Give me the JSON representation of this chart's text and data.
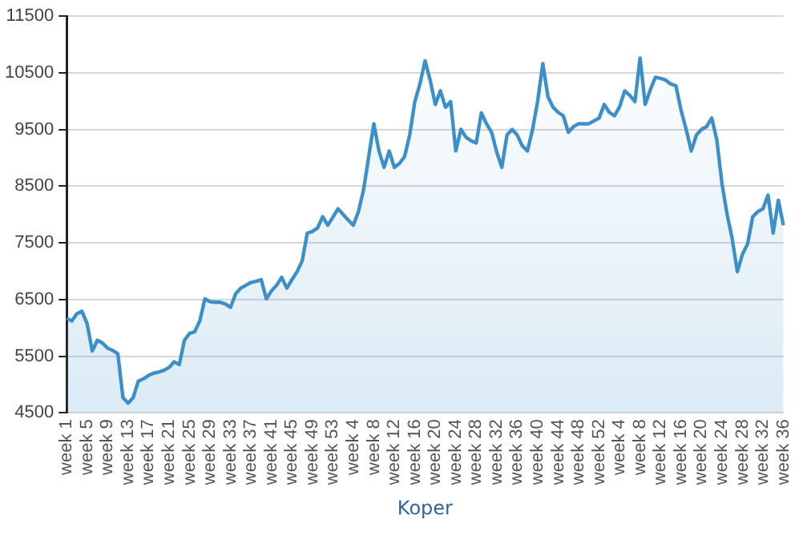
{
  "chart_data": {
    "type": "area",
    "xlabel": "Koper",
    "categories": [
      "week 1",
      null,
      null,
      null,
      "week 5",
      null,
      null,
      null,
      "week 9",
      null,
      null,
      null,
      "week 13",
      null,
      null,
      null,
      "week 17",
      null,
      null,
      null,
      "week 21",
      null,
      null,
      null,
      "week 25",
      null,
      null,
      null,
      "week 29",
      null,
      null,
      null,
      "week 33",
      null,
      null,
      null,
      "week 37",
      null,
      null,
      null,
      "week 41",
      null,
      null,
      null,
      "week 45",
      null,
      null,
      null,
      "week 49",
      null,
      null,
      null,
      "week 53",
      null,
      null,
      null,
      "week 4",
      null,
      null,
      null,
      "week 8",
      null,
      null,
      null,
      "week 12",
      null,
      null,
      null,
      "week 16",
      null,
      null,
      null,
      "week 20",
      null,
      null,
      null,
      "week 24",
      null,
      null,
      null,
      "week 28",
      null,
      null,
      null,
      "week 32",
      null,
      null,
      null,
      "week 36",
      null,
      null,
      null,
      "week 40",
      null,
      null,
      null,
      "week 44",
      null,
      null,
      null,
      "week 48",
      null,
      null,
      null,
      "week 52",
      null,
      null,
      null,
      "week 4",
      null,
      null,
      null,
      "week 8",
      null,
      null,
      null,
      "week 12",
      null,
      null,
      null,
      "week 16",
      null,
      null,
      null,
      "week 20",
      null,
      null,
      null,
      "week 24",
      null,
      null,
      null,
      "week 28",
      null,
      null,
      null,
      "week 32",
      null,
      null,
      null,
      "week 36"
    ],
    "series": [
      {
        "color": "#3d8fca",
        "values": [
          6170,
          6120,
          6250,
          6290,
          6070,
          5590,
          5780,
          5730,
          5640,
          5600,
          5540,
          4770,
          4670,
          4770,
          5060,
          5100,
          5160,
          5200,
          5220,
          5250,
          5300,
          5400,
          5350,
          5780,
          5900,
          5930,
          6120,
          6510,
          6460,
          6450,
          6450,
          6420,
          6360,
          6600,
          6700,
          6750,
          6800,
          6820,
          6850,
          6510,
          6650,
          6750,
          6890,
          6700,
          6850,
          6990,
          7180,
          7670,
          7700,
          7760,
          7960,
          7810,
          7950,
          8100,
          8000,
          7900,
          7810,
          8050,
          8440,
          9020,
          9600,
          9120,
          8830,
          9120,
          8830,
          8900,
          9020,
          9400,
          9990,
          10300,
          10710,
          10370,
          9940,
          10180,
          9890,
          9990,
          9120,
          9500,
          9360,
          9300,
          9260,
          9790,
          9600,
          9450,
          9100,
          8830,
          9400,
          9500,
          9400,
          9210,
          9120,
          9500,
          10000,
          10660,
          10080,
          9890,
          9800,
          9740,
          9450,
          9550,
          9600,
          9600,
          9600,
          9650,
          9700,
          9940,
          9800,
          9740,
          9900,
          10180,
          10100,
          9990,
          10760,
          9940,
          10200,
          10420,
          10400,
          10370,
          10300,
          10270,
          9840,
          9500,
          9120,
          9400,
          9500,
          9550,
          9700,
          9310,
          8540,
          8000,
          7570,
          6990,
          7300,
          7480,
          7960,
          8050,
          8100,
          8340,
          7670,
          8250,
          7810
        ]
      }
    ],
    "ylim": [
      4500,
      11500
    ],
    "yticks": [
      4500,
      5500,
      6500,
      7500,
      8500,
      9500,
      10500,
      11500
    ],
    "grid": "y"
  }
}
